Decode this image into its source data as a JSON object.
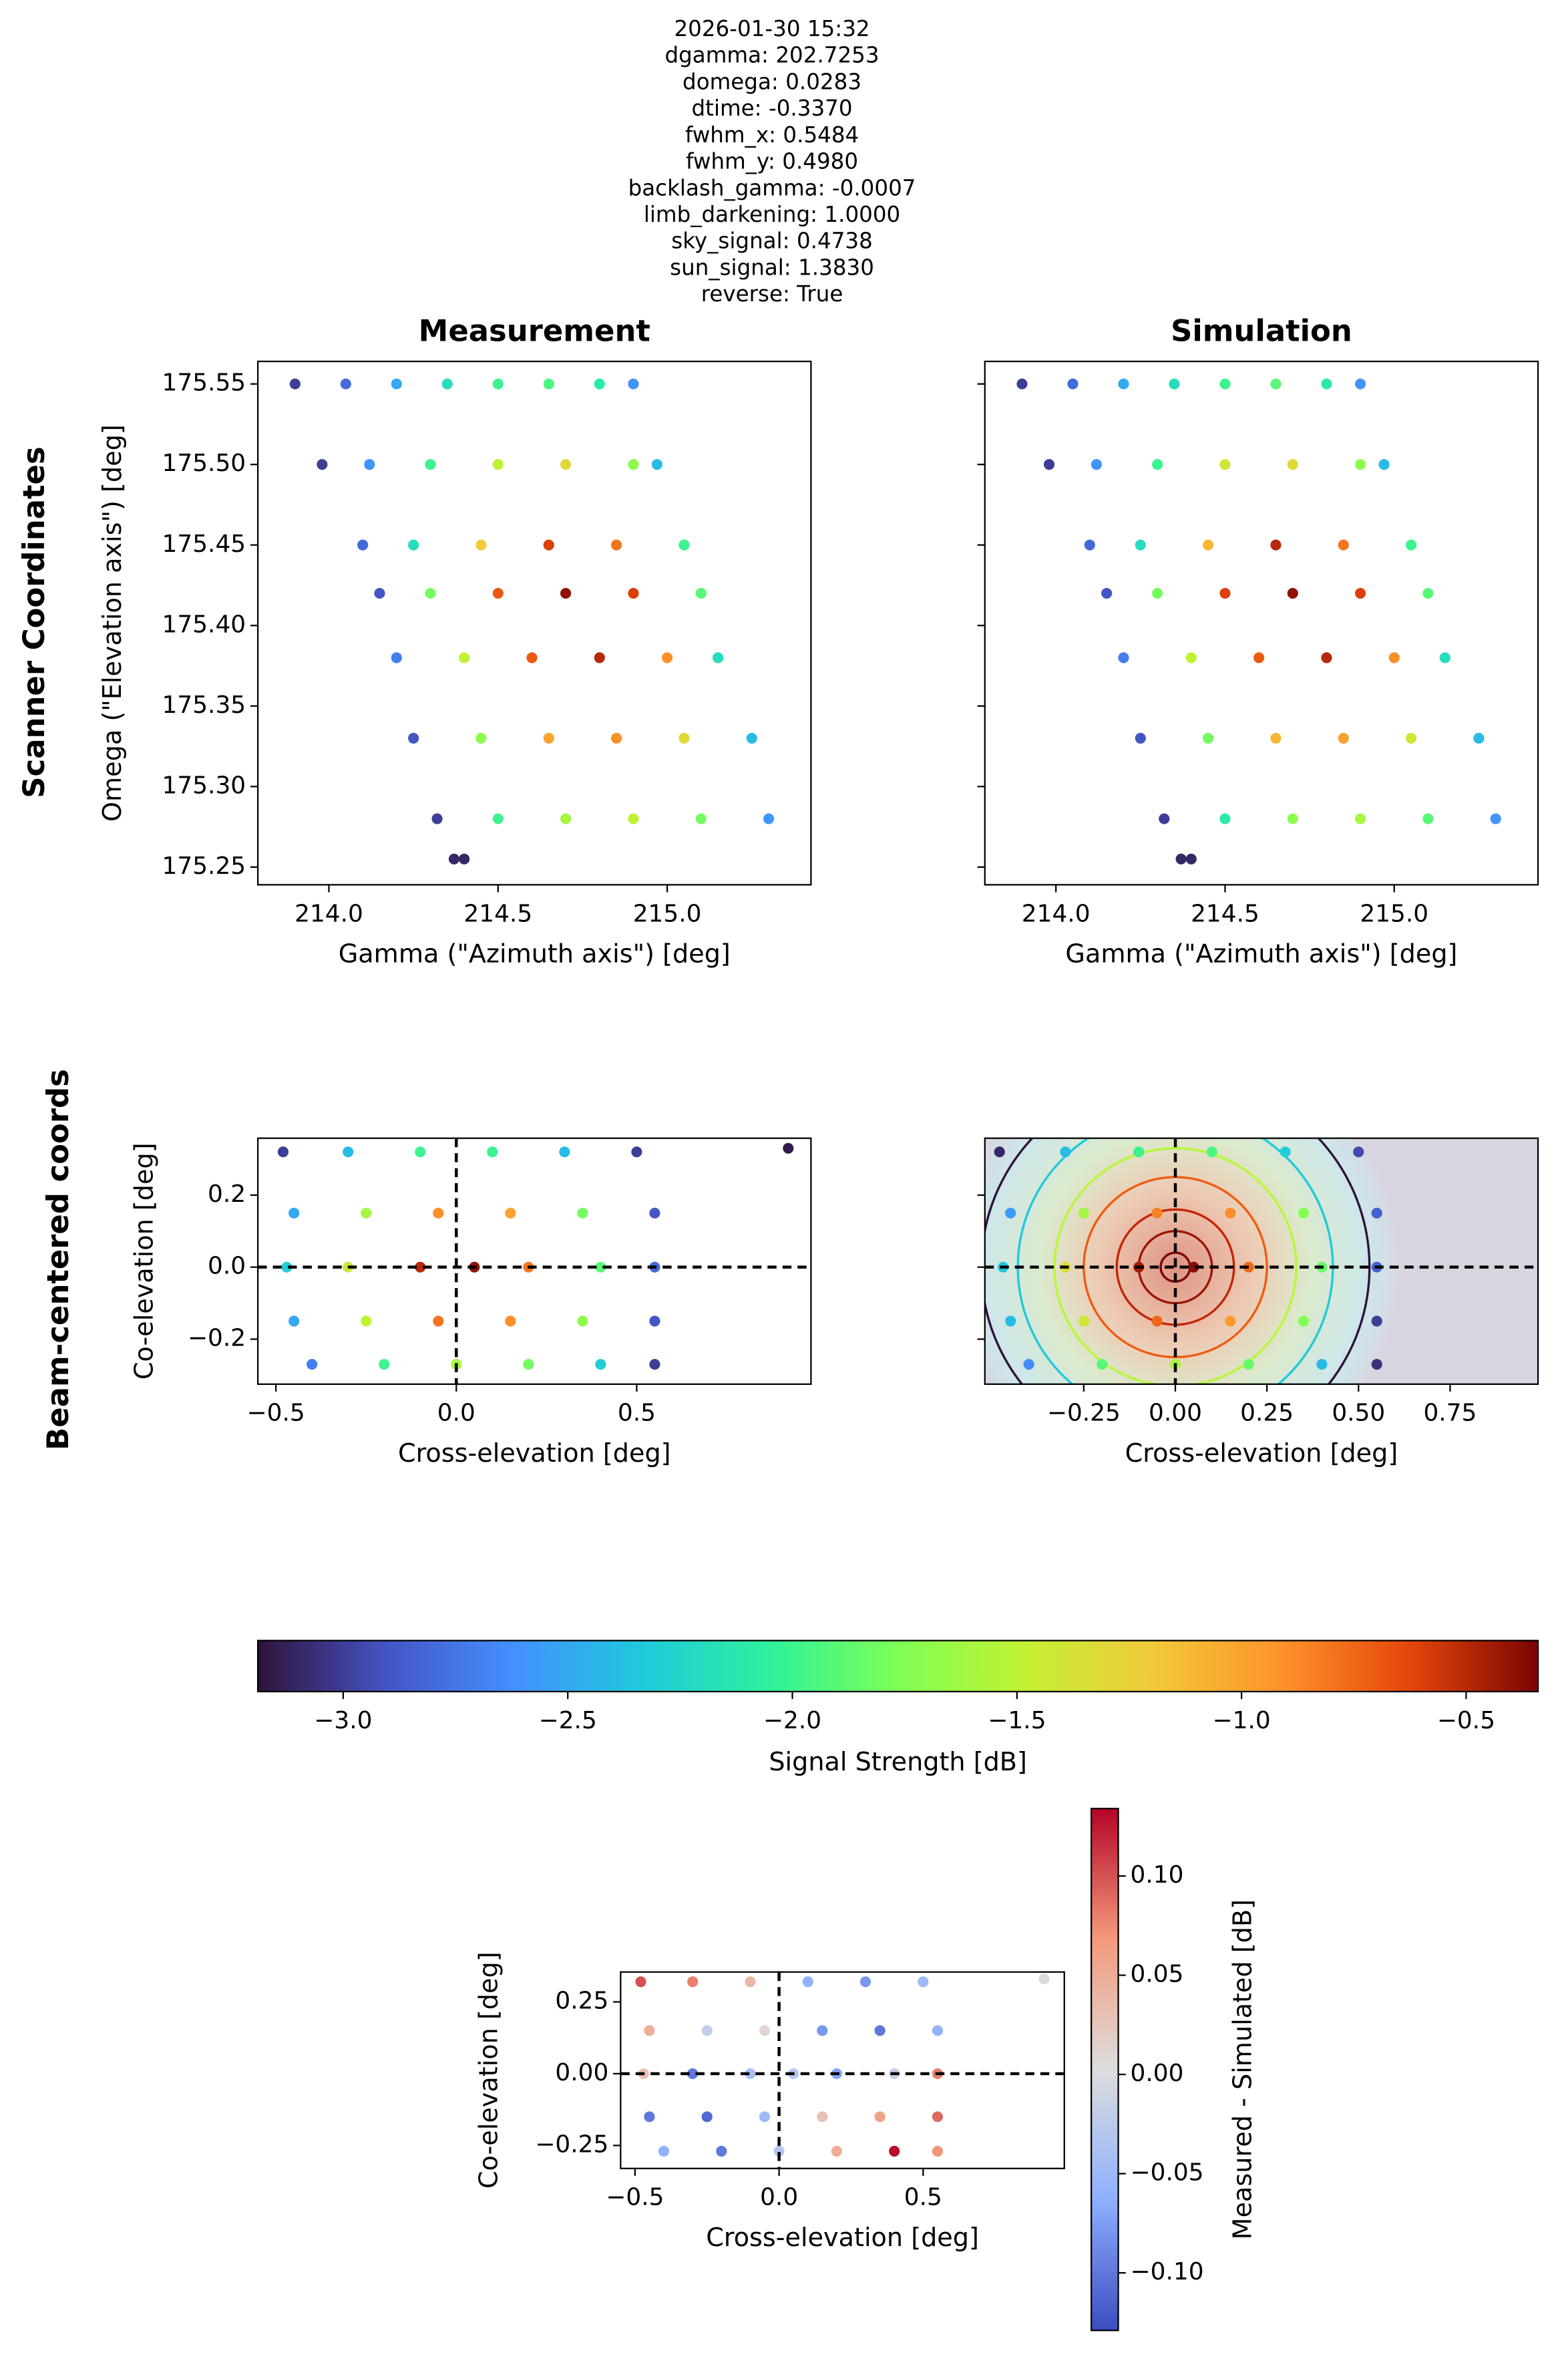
{
  "figure": {
    "title_lines": [
      "2026-01-30 15:32",
      "dgamma: 202.7253",
      "domega: 0.0283",
      "dtime: -0.3370",
      "fwhm_x: 0.5484",
      "fwhm_y: 0.4980",
      "backlash_gamma: -0.0007",
      "limb_darkening: 1.0000",
      "sky_signal: 0.4738",
      "sun_signal: 1.3830",
      "reverse: True"
    ],
    "row_labels": [
      "Scanner Coordinates",
      "Beam-centered coords"
    ]
  },
  "chart_data": [
    {
      "type": "scatter",
      "title": "Measurement",
      "xlabel": "Gamma (\"Azimuth axis\") [deg]",
      "ylabel": "Omega (\"Elevation axis\") [deg]",
      "colormap": "turbo",
      "xlim": [
        213.79,
        215.425
      ],
      "ylim": [
        175.239,
        175.564
      ],
      "xticks": [
        {
          "value": 214,
          "label": "214.0"
        },
        214.5,
        {
          "value": 215,
          "label": "215.0"
        }
      ],
      "yticks": [
        175.25,
        {
          "value": 175.3,
          "label": "175.30"
        },
        175.35,
        {
          "value": 175.4,
          "label": "175.40"
        },
        175.45,
        {
          "value": 175.5,
          "label": "175.50"
        },
        175.55
      ],
      "x": [
        213.9,
        214.05,
        214.2,
        214.35,
        214.5,
        214.65,
        214.8,
        214.9,
        213.98,
        214.12,
        214.3,
        214.5,
        214.7,
        214.9,
        214.97,
        214.1,
        214.25,
        214.45,
        214.65,
        214.85,
        215.05,
        214.15,
        214.3,
        214.5,
        214.7,
        214.9,
        215.1,
        214.2,
        214.4,
        214.6,
        214.8,
        215.0,
        215.15,
        214.25,
        214.45,
        214.65,
        214.85,
        215.05,
        215.25,
        214.32,
        214.5,
        214.7,
        214.9,
        215.1,
        215.3,
        214.37,
        214.4
      ],
      "y": [
        175.55,
        175.55,
        175.55,
        175.55,
        175.55,
        175.55,
        175.55,
        175.55,
        175.5,
        175.5,
        175.5,
        175.5,
        175.5,
        175.5,
        175.5,
        175.45,
        175.45,
        175.45,
        175.45,
        175.45,
        175.45,
        175.42,
        175.42,
        175.42,
        175.42,
        175.42,
        175.42,
        175.38,
        175.38,
        175.38,
        175.38,
        175.38,
        175.38,
        175.33,
        175.33,
        175.33,
        175.33,
        175.33,
        175.33,
        175.28,
        175.28,
        175.28,
        175.28,
        175.28,
        175.28,
        175.255,
        175.255
      ],
      "values": [
        -3.0,
        -2.8,
        -2.5,
        -2.2,
        -2.0,
        -1.95,
        -2.1,
        -2.6,
        -3.0,
        -2.6,
        -2.0,
        -1.5,
        -1.3,
        -1.7,
        -2.4,
        -2.8,
        -2.2,
        -1.2,
        -0.6,
        -0.8,
        -2.0,
        -2.9,
        -1.8,
        -0.7,
        -0.4,
        -0.6,
        -1.9,
        -2.7,
        -1.5,
        -0.7,
        -0.5,
        -0.9,
        -2.2,
        -2.9,
        -1.7,
        -1.0,
        -0.9,
        -1.3,
        -2.4,
        -3.0,
        -2.0,
        -1.6,
        -1.5,
        -1.8,
        -2.6,
        -3.1,
        -3.1
      ]
    },
    {
      "type": "scatter",
      "title": "Simulation",
      "xlabel": "Gamma (\"Azimuth axis\") [deg]",
      "colormap": "turbo",
      "ytick_labels": false,
      "xlim": [
        213.79,
        215.425
      ],
      "ylim": [
        175.239,
        175.564
      ],
      "xticks": [
        {
          "value": 214,
          "label": "214.0"
        },
        214.5,
        {
          "value": 215,
          "label": "215.0"
        }
      ],
      "yticks": [
        175.25,
        175.3,
        175.35,
        175.4,
        175.45,
        175.5,
        175.55
      ],
      "x": [
        213.9,
        214.05,
        214.2,
        214.35,
        214.5,
        214.65,
        214.8,
        214.9,
        213.98,
        214.12,
        214.3,
        214.5,
        214.7,
        214.9,
        214.97,
        214.1,
        214.25,
        214.45,
        214.65,
        214.85,
        215.05,
        214.15,
        214.3,
        214.5,
        214.7,
        214.9,
        215.1,
        214.2,
        214.4,
        214.6,
        214.8,
        215.0,
        215.15,
        214.25,
        214.45,
        214.65,
        214.85,
        215.05,
        215.25,
        214.32,
        214.5,
        214.7,
        214.9,
        215.1,
        215.3,
        214.37,
        214.4
      ],
      "y": [
        175.55,
        175.55,
        175.55,
        175.55,
        175.55,
        175.55,
        175.55,
        175.55,
        175.5,
        175.5,
        175.5,
        175.5,
        175.5,
        175.5,
        175.5,
        175.45,
        175.45,
        175.45,
        175.45,
        175.45,
        175.45,
        175.42,
        175.42,
        175.42,
        175.42,
        175.42,
        175.42,
        175.38,
        175.38,
        175.38,
        175.38,
        175.38,
        175.38,
        175.33,
        175.33,
        175.33,
        175.33,
        175.33,
        175.33,
        175.28,
        175.28,
        175.28,
        175.28,
        175.28,
        175.28,
        175.255,
        175.255
      ],
      "values": [
        -3.0,
        -2.8,
        -2.5,
        -2.2,
        -2.0,
        -1.9,
        -2.1,
        -2.6,
        -3.0,
        -2.6,
        -2.0,
        -1.4,
        -1.3,
        -1.7,
        -2.4,
        -2.8,
        -2.2,
        -1.1,
        -0.5,
        -0.8,
        -2.0,
        -2.9,
        -1.8,
        -0.6,
        -0.4,
        -0.6,
        -1.9,
        -2.7,
        -1.5,
        -0.7,
        -0.5,
        -0.9,
        -2.2,
        -2.9,
        -1.8,
        -1.1,
        -1.0,
        -1.4,
        -2.4,
        -3.0,
        -2.1,
        -1.7,
        -1.6,
        -1.9,
        -2.6,
        -3.1,
        -3.1
      ]
    },
    {
      "type": "scatter",
      "xlabel": "Cross-elevation [deg]",
      "ylabel": "Co-elevation [deg]",
      "colormap": "turbo",
      "crosshair": true,
      "xlim": [
        -0.55,
        0.983
      ],
      "ylim": [
        -0.325,
        0.358
      ],
      "xticks": [
        {
          "value": -0.5,
          "label": "−0.5"
        },
        {
          "value": 0,
          "label": "0.0"
        },
        0.5
      ],
      "yticks": [
        {
          "value": -0.2,
          "label": "−0.2"
        },
        {
          "value": 0,
          "label": "0.0"
        },
        0.2
      ],
      "x": [
        -0.48,
        -0.3,
        -0.1,
        0.1,
        0.3,
        0.5,
        -0.45,
        -0.25,
        -0.05,
        0.15,
        0.35,
        0.55,
        -0.47,
        -0.3,
        -0.1,
        0.05,
        0.2,
        0.4,
        0.55,
        -0.45,
        -0.25,
        -0.05,
        0.15,
        0.35,
        0.55,
        -0.4,
        -0.2,
        0.0,
        0.2,
        0.4,
        0.55,
        0.92
      ],
      "y": [
        0.32,
        0.32,
        0.32,
        0.32,
        0.32,
        0.32,
        0.15,
        0.15,
        0.15,
        0.15,
        0.15,
        0.15,
        0.0,
        0.0,
        0.0,
        0.0,
        0.0,
        0.0,
        0.0,
        -0.15,
        -0.15,
        -0.15,
        -0.15,
        -0.15,
        -0.15,
        -0.27,
        -0.27,
        -0.27,
        -0.27,
        -0.27,
        -0.27,
        0.33
      ],
      "values": [
        -3.0,
        -2.4,
        -2.0,
        -2.0,
        -2.4,
        -3.0,
        -2.5,
        -1.6,
        -0.9,
        -1.0,
        -1.8,
        -2.9,
        -2.3,
        -1.4,
        -0.5,
        -0.4,
        -0.8,
        -1.9,
        -2.8,
        -2.5,
        -1.5,
        -0.8,
        -0.9,
        -1.7,
        -2.9,
        -2.7,
        -2.0,
        -1.6,
        -1.8,
        -2.3,
        -3.0,
        -3.15
      ]
    },
    {
      "type": "scatter",
      "xlabel": "Cross-elevation [deg]",
      "colormap": "turbo",
      "crosshair": true,
      "ytick_labels": false,
      "xlim": [
        -0.52,
        0.99
      ],
      "ylim": [
        -0.325,
        0.358
      ],
      "xticks": [
        {
          "value": -0.25,
          "label": "−0.25"
        },
        {
          "value": 0,
          "label": "0.00"
        },
        0.25,
        {
          "value": 0.5,
          "label": "0.50"
        },
        0.75
      ],
      "yticks": [
        -0.2,
        0,
        0.2
      ],
      "contours": [
        {
          "radius": 0.04,
          "color": "#7a0403"
        },
        {
          "radius": 0.1,
          "color": "#9b1504"
        },
        {
          "radius": 0.16,
          "color": "#c42503"
        },
        {
          "radius": 0.25,
          "color": "#f05b12"
        },
        {
          "radius": 0.33,
          "color": "#b5f836"
        },
        {
          "radius": 0.43,
          "color": "#1fc9dd"
        },
        {
          "radius": 0.53,
          "color": "#30123b"
        }
      ],
      "x": [
        -0.48,
        -0.3,
        -0.1,
        0.1,
        0.3,
        0.5,
        -0.45,
        -0.25,
        -0.05,
        0.15,
        0.35,
        0.55,
        -0.47,
        -0.3,
        -0.1,
        0.05,
        0.2,
        0.4,
        0.55,
        -0.45,
        -0.25,
        -0.05,
        0.15,
        0.35,
        0.55,
        -0.4,
        -0.2,
        0.0,
        0.2,
        0.4,
        0.55
      ],
      "y": [
        0.32,
        0.32,
        0.32,
        0.32,
        0.32,
        0.32,
        0.15,
        0.15,
        0.15,
        0.15,
        0.15,
        0.15,
        0.0,
        0.0,
        0.0,
        0.0,
        0.0,
        0.0,
        0.0,
        -0.15,
        -0.15,
        -0.15,
        -0.15,
        -0.15,
        -0.15,
        -0.27,
        -0.27,
        -0.27,
        -0.27,
        -0.27,
        -0.27
      ],
      "values": [
        -3.1,
        -2.4,
        -2.0,
        -1.95,
        -2.3,
        -2.95,
        -2.55,
        -1.6,
        -0.85,
        -0.9,
        -1.75,
        -2.85,
        -2.35,
        -1.3,
        -0.45,
        -0.38,
        -0.75,
        -1.85,
        -2.85,
        -2.4,
        -1.4,
        -0.75,
        -0.95,
        -1.75,
        -3.0,
        -2.65,
        -1.9,
        -1.6,
        -1.85,
        -2.4,
        -3.05
      ]
    },
    {
      "type": "colorbar",
      "orientation": "horizontal",
      "label": "Signal Strength [dB]",
      "colormap": "turbo",
      "lim": [
        -3.19,
        -0.34
      ],
      "ticks": [
        {
          "value": -3.0,
          "label": "−3.0"
        },
        {
          "value": -2.5,
          "label": "−2.5"
        },
        {
          "value": -2.0,
          "label": "−2.0"
        },
        {
          "value": -1.5,
          "label": "−1.5"
        },
        {
          "value": -1.0,
          "label": "−1.0"
        },
        {
          "value": -0.5,
          "label": "−0.5"
        }
      ]
    },
    {
      "type": "scatter",
      "xlabel": "Cross-elevation [deg]",
      "ylabel": "Co-elevation [deg]",
      "colormap": "coolwarm",
      "crosshair": true,
      "xlim": [
        -0.55,
        0.99
      ],
      "ylim": [
        -0.33,
        0.354
      ],
      "xticks": [
        {
          "value": -0.5,
          "label": "−0.5"
        },
        {
          "value": 0,
          "label": "0.0"
        },
        0.5
      ],
      "yticks": [
        {
          "value": -0.25,
          "label": "−0.25"
        },
        {
          "value": 0,
          "label": "0.00"
        },
        0.25
      ],
      "x": [
        -0.48,
        -0.3,
        -0.1,
        0.1,
        0.3,
        0.5,
        -0.45,
        -0.25,
        -0.05,
        0.15,
        0.35,
        0.55,
        -0.47,
        -0.3,
        -0.1,
        0.05,
        0.2,
        0.4,
        0.55,
        -0.45,
        -0.25,
        -0.05,
        0.15,
        0.35,
        0.55,
        -0.4,
        -0.2,
        0.0,
        0.2,
        0.4,
        0.55,
        0.92
      ],
      "y": [
        0.32,
        0.32,
        0.32,
        0.32,
        0.32,
        0.32,
        0.15,
        0.15,
        0.15,
        0.15,
        0.15,
        0.15,
        0.0,
        0.0,
        0.0,
        0.0,
        0.0,
        0.0,
        0.0,
        -0.15,
        -0.15,
        -0.15,
        -0.15,
        -0.15,
        -0.15,
        -0.27,
        -0.27,
        -0.27,
        -0.27,
        -0.27,
        -0.27,
        0.33
      ],
      "values": [
        0.1,
        0.08,
        0.04,
        -0.06,
        -0.08,
        -0.05,
        0.05,
        -0.02,
        0.01,
        -0.08,
        -0.1,
        -0.06,
        0.03,
        -0.1,
        -0.04,
        -0.03,
        -0.07,
        -0.02,
        0.08,
        -0.1,
        -0.11,
        -0.05,
        0.03,
        0.06,
        0.09,
        -0.06,
        -0.1,
        -0.03,
        0.05,
        0.13,
        0.07,
        0.0
      ]
    },
    {
      "type": "colorbar",
      "orientation": "vertical",
      "label": "Measured - Simulated [dB]",
      "colormap": "coolwarm",
      "lim": [
        -0.129,
        0.134
      ],
      "ticks": [
        {
          "value": -0.1,
          "label": "−0.10"
        },
        {
          "value": -0.05,
          "label": "−0.05"
        },
        {
          "value": 0,
          "label": "0.00"
        },
        0.05,
        {
          "value": 0.1,
          "label": "0.10"
        }
      ]
    }
  ]
}
